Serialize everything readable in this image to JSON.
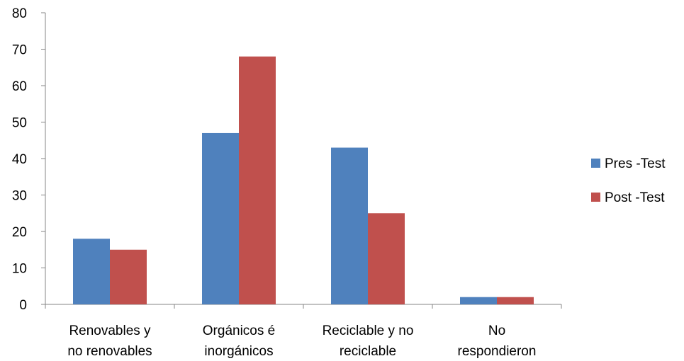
{
  "chart_data": {
    "type": "bar",
    "categories": [
      [
        "Renovables y",
        "no renovables"
      ],
      [
        "Orgánicos é",
        "inorgánicos"
      ],
      [
        "Reciclable y no",
        "reciclable"
      ],
      [
        "No",
        "respondieron"
      ]
    ],
    "series": [
      {
        "name": "Pres -Test",
        "color": "#4F81BD",
        "values": [
          18,
          47,
          43,
          2
        ]
      },
      {
        "name": "Post -Test",
        "color": "#C0504D",
        "values": [
          15,
          68,
          25,
          2
        ]
      }
    ],
    "yticks": [
      "0",
      "10",
      "20",
      "30",
      "40",
      "50",
      "60",
      "70",
      "80"
    ],
    "ylim": [
      0,
      80
    ],
    "grid": false,
    "legend_position": "right"
  }
}
